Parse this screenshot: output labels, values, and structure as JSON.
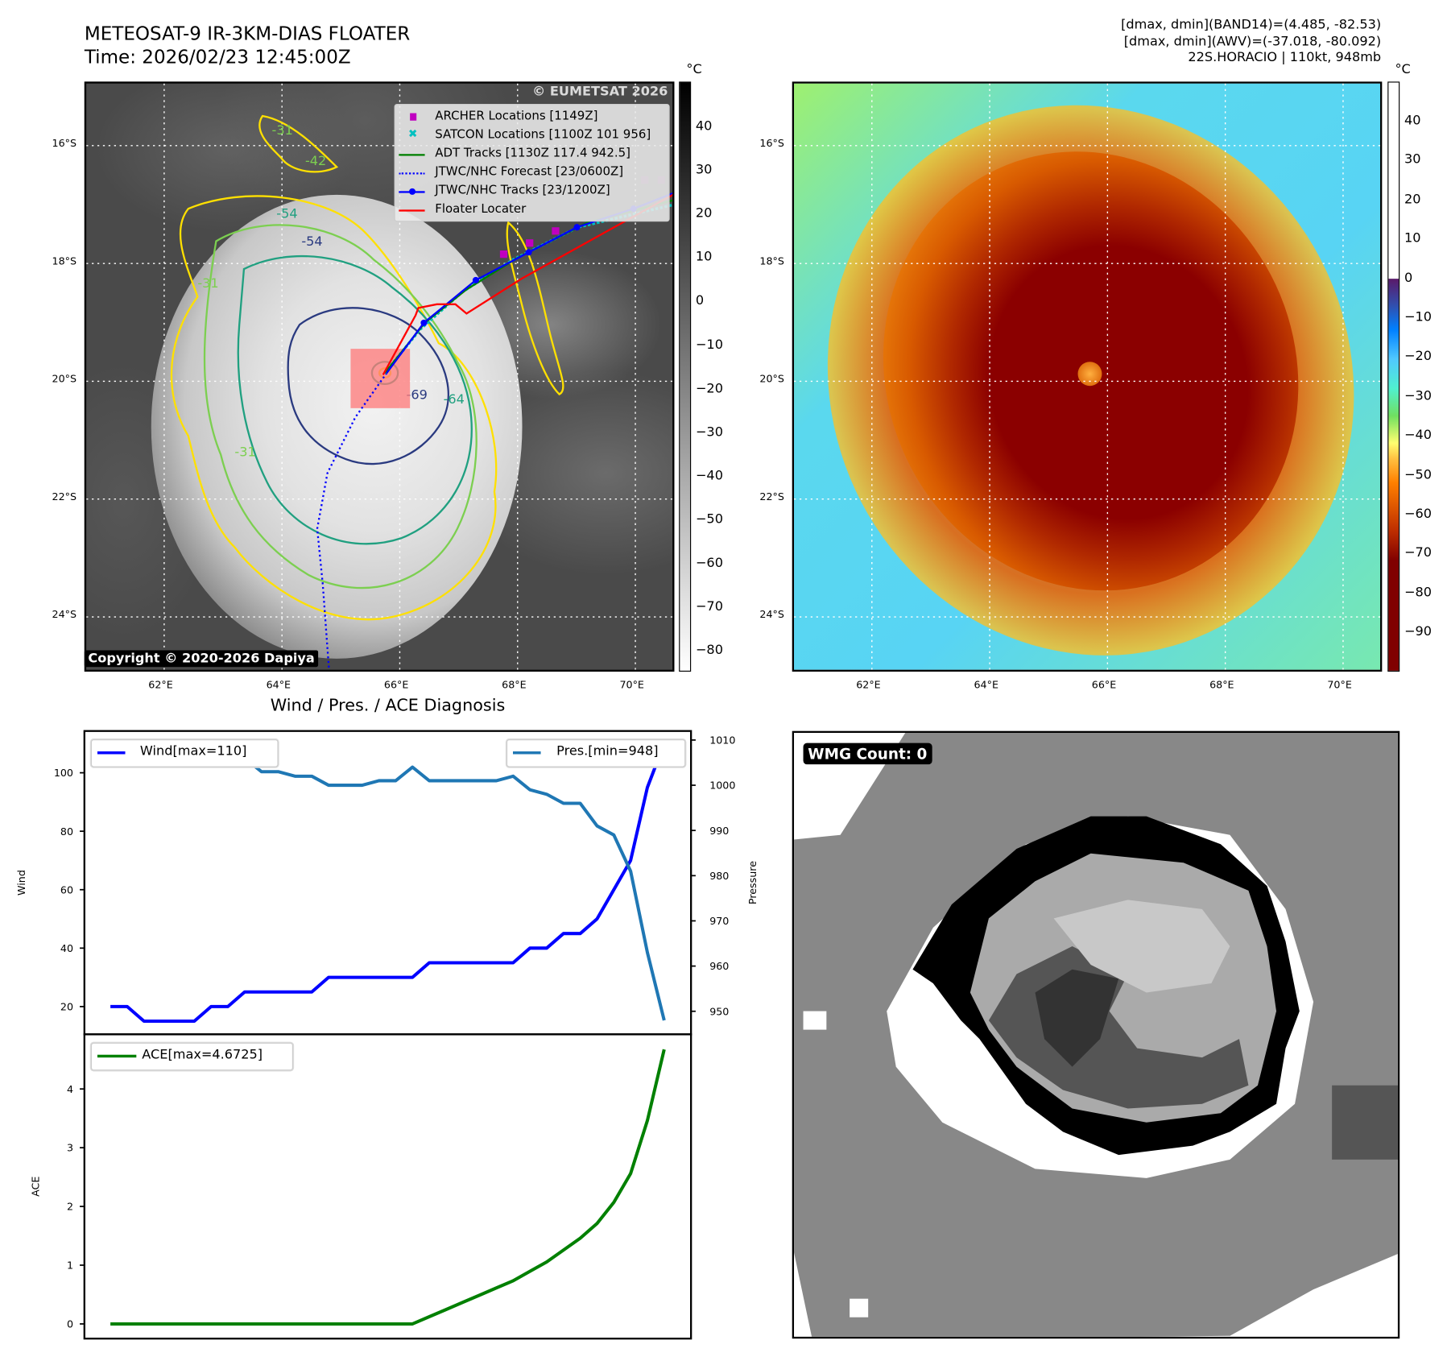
{
  "header": {
    "title_line1": "METEOSAT-9 IR-3KM-DIAS FLOATER",
    "title_line2": "Time: 2026/02/23 12:45:00Z",
    "stats_line1": "[dmax, dmin](BAND14)=(4.485, -82.53)",
    "stats_line2": "[dmax, dmin](AWV)=(-37.018, -80.092)",
    "stats_line3": "22S.HORACIO | 110kt, 948mb"
  },
  "map": {
    "lat_labels": [
      "16°S",
      "18°S",
      "20°S",
      "22°S",
      "24°S"
    ],
    "lon_labels": [
      "62°E",
      "64°E",
      "66°E",
      "68°E",
      "70°E"
    ],
    "watermark": "© EUMETSAT 2026",
    "copyright": "Copyright © 2020-2026 Dapiya",
    "contour_labels": [
      "-31",
      "-54",
      "-54",
      "-64",
      "-69",
      "-31",
      "-31",
      "-42"
    ],
    "legend": [
      {
        "label": "ARCHER Locations [1149Z]",
        "color": "#c000c0"
      },
      {
        "label": "SATCON Locations [1100Z 101 956]",
        "color": "#00c0c0"
      },
      {
        "label": "ADT Tracks [1130Z 117.4 942.5]",
        "color": "#008000"
      },
      {
        "label": "JTWC/NHC Forecast [23/0600Z]",
        "color": "#0000ff"
      },
      {
        "label": "JTWC/NHC Tracks [23/1200Z]",
        "color": "#0000ff"
      },
      {
        "label": "Floater Locater",
        "color": "#ff0000"
      }
    ]
  },
  "colorbars": {
    "unit": "°C",
    "ir_ticks": [
      "40",
      "30",
      "20",
      "10",
      "0",
      "−10",
      "−20",
      "−30",
      "−40",
      "−50",
      "−60",
      "−70",
      "−80"
    ],
    "color_ticks": [
      "40",
      "30",
      "20",
      "10",
      "0",
      "−10",
      "−20",
      "−30",
      "−40",
      "−50",
      "−60",
      "−70",
      "−80",
      "−90"
    ]
  },
  "wmg": {
    "label": "WMG Count: 0"
  },
  "chart_data": {
    "type": "line",
    "title": "Wind / Pres. / ACE Diagnosis",
    "x": [
      0,
      1,
      2,
      3,
      4,
      5,
      6,
      7,
      8,
      9,
      10,
      11,
      12,
      13,
      14,
      15,
      16,
      17,
      18,
      19,
      20,
      21,
      22,
      23,
      24,
      25,
      26,
      27,
      28,
      29,
      30,
      31,
      32,
      33
    ],
    "xlim": [
      -1.55,
      34.6
    ],
    "panels": [
      {
        "ylabel": "Wind",
        "ylim": [
          10.5,
          114.3
        ],
        "yticks": [
          20,
          40,
          60,
          80,
          100
        ],
        "series": [
          {
            "name": "Wind[max=110]",
            "color": "#0000ff",
            "values": [
              20,
              20,
              15,
              15,
              15,
              15,
              20,
              20,
              25,
              25,
              25,
              25,
              25,
              30,
              30,
              30,
              30,
              30,
              30,
              35,
              35,
              35,
              35,
              35,
              35,
              40,
              40,
              45,
              45,
              50,
              60,
              70,
              95,
              110
            ]
          }
        ],
        "legend": "top-left"
      },
      {
        "ylabel": "Pressure",
        "ylim": [
          944.9,
          1012
        ],
        "yticks": [
          950,
          960,
          970,
          980,
          990,
          1000,
          1010
        ],
        "axis": "right",
        "series": [
          {
            "name": "Pres.[min=948]",
            "color": "#1f77b4",
            "values": [
              1007,
              1007,
              1009,
              1007,
              1007,
              1007,
              1007,
              1006,
              1006,
              1003,
              1003,
              1002,
              1002,
              1000,
              1000,
              1000,
              1001,
              1001,
              1004,
              1001,
              1001,
              1001,
              1001,
              1001,
              1002,
              999,
              998,
              996,
              996,
              991,
              989,
              981,
              963,
              948
            ]
          }
        ],
        "legend": "top-right"
      },
      {
        "ylabel": "ACE",
        "ylim": [
          -0.25,
          4.93
        ],
        "yticks": [
          0,
          1,
          2,
          3,
          4
        ],
        "series": [
          {
            "name": "ACE[max=4.6725]",
            "color": "#008000",
            "values": [
              0,
              0,
              0,
              0,
              0,
              0,
              0,
              0,
              0,
              0,
              0,
              0,
              0,
              0,
              0,
              0,
              0,
              0,
              0,
              0.1225,
              0.245,
              0.3675,
              0.49,
              0.6125,
              0.735,
              0.895,
              1.055,
              1.2575,
              1.46,
              1.71,
              2.07,
              2.56,
              3.4625,
              4.6725
            ]
          }
        ],
        "legend": "top-left"
      }
    ]
  }
}
